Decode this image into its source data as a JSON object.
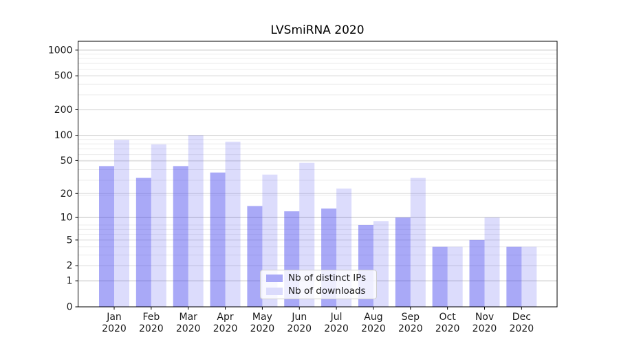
{
  "figure": {
    "title": "LVSmiRNA 2020"
  },
  "legend": {
    "items": [
      {
        "label": "Nb of distinct IPs",
        "color": "#4444ee",
        "alpha": 0.46
      },
      {
        "label": "Nb of downloads",
        "color": "#4444ee",
        "alpha": 0.19
      }
    ]
  },
  "chart_data": {
    "type": "bar",
    "title": "LVSmiRNA 2020",
    "categories": [
      "Jan\n2020",
      "Feb\n2020",
      "Mar\n2020",
      "Apr\n2020",
      "May\n2020",
      "Jun\n2020",
      "Jul\n2020",
      "Aug\n2020",
      "Sep\n2020",
      "Oct\n2020",
      "Nov\n2020",
      "Dec\n2020"
    ],
    "series": [
      {
        "name": "Nb of distinct IPs",
        "color": "#4444ee",
        "alpha": 0.46,
        "values": [
          43,
          31,
          43,
          36,
          14,
          12,
          13,
          8,
          10,
          4,
          5,
          4
        ]
      },
      {
        "name": "Nb of downloads",
        "color": "#4444ee",
        "alpha": 0.19,
        "values": [
          88,
          78,
          100,
          84,
          34,
          47,
          23,
          9,
          31,
          4,
          10,
          4
        ]
      }
    ],
    "yscale": "log1p",
    "ylim": [
      0,
      1000
    ],
    "yticks": [
      0,
      1,
      2,
      5,
      10,
      20,
      50,
      100,
      200,
      500,
      1000
    ],
    "strong_gridlines": [
      1,
      10,
      100,
      1000
    ],
    "grid": true,
    "legend_position": "lower-center",
    "xlabel": "",
    "ylabel": "",
    "colors": {
      "grid_strong": "#c4c4c4",
      "grid_mid": "#dadada",
      "grid_minor": "#ececec",
      "spine": "#000000",
      "text": "#1a1a1a"
    }
  }
}
